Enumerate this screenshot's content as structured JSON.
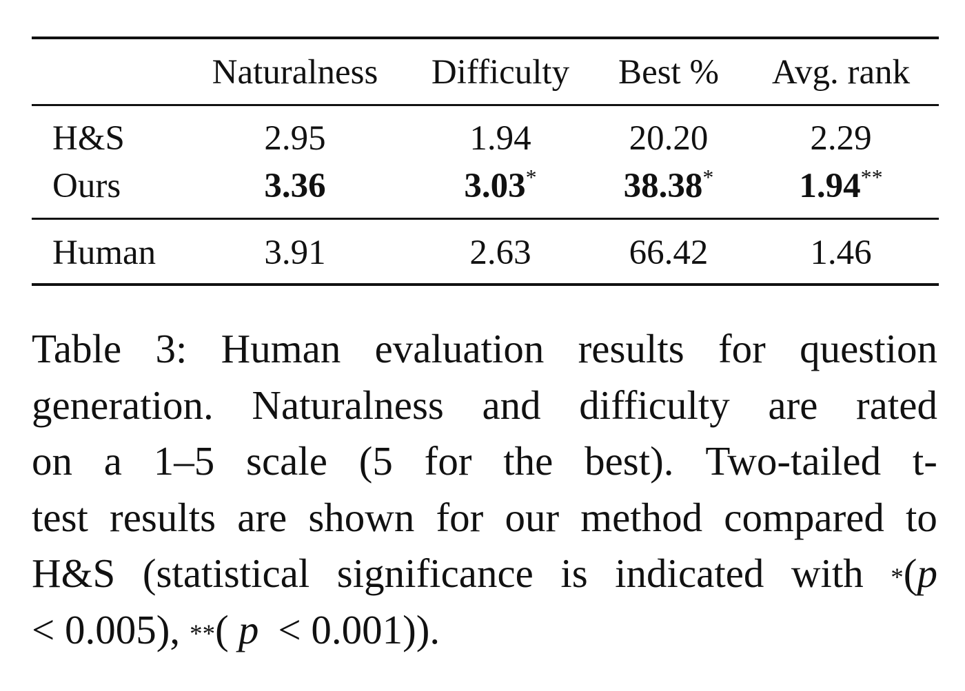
{
  "table": {
    "headers": [
      "",
      "Naturalness",
      "Difficulty",
      "Best %",
      "Avg. rank"
    ],
    "rows": [
      {
        "method": "H&S",
        "naturalness": "2.95",
        "difficulty": "1.94",
        "best_pct": "20.20",
        "avg_rank": "2.29"
      },
      {
        "method": "Ours",
        "naturalness": "3.36",
        "difficulty": "3.03",
        "difficulty_sig": "*",
        "best_pct": "38.38",
        "best_pct_sig": "*",
        "avg_rank": "1.94",
        "avg_rank_sig": "**"
      },
      {
        "method": "Human",
        "naturalness": "3.91",
        "difficulty": "2.63",
        "best_pct": "66.42",
        "avg_rank": "1.46"
      }
    ]
  },
  "caption": {
    "line1": [
      "Table",
      "3:",
      "Human",
      "evaluation",
      "results",
      "for",
      "question"
    ],
    "line2": [
      "generation.",
      "Naturalness",
      "and",
      "difficulty",
      "are",
      "rated"
    ],
    "line3": [
      "on",
      "a",
      "1–5",
      "scale",
      "(5",
      "for",
      "the",
      "best).",
      "Two-tailed",
      "t-"
    ],
    "line4": [
      "test",
      "results",
      "are",
      "shown",
      "for",
      "our",
      "method",
      "compared",
      "to"
    ],
    "line5": [
      "H&S",
      "(statistical",
      "significance",
      "is",
      "indicated",
      "with"
    ],
    "line5_sup": "*",
    "line5_paren": "(",
    "line5_p": "p",
    "line6_a": "< 0.005),",
    "line6_sup": "**",
    "line6_paren": "(",
    "line6_p": "p",
    "line6_b": "< 0.001))."
  }
}
